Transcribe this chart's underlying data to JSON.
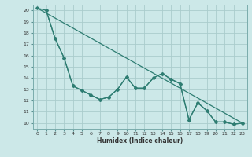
{
  "xlabel": "Humidex (Indice chaleur)",
  "bg_color": "#cce8e8",
  "grid_color": "#aacccc",
  "line_color": "#2e7d72",
  "xlim": [
    -0.5,
    23.5
  ],
  "ylim": [
    9.5,
    20.5
  ],
  "yticks": [
    10,
    11,
    12,
    13,
    14,
    15,
    16,
    17,
    18,
    19,
    20
  ],
  "xticks": [
    0,
    1,
    2,
    3,
    4,
    5,
    6,
    7,
    8,
    9,
    10,
    11,
    12,
    13,
    14,
    15,
    16,
    17,
    18,
    19,
    20,
    21,
    22,
    23
  ],
  "line1_x": [
    0,
    23
  ],
  "line1_y": [
    20.2,
    10.0
  ],
  "line2_x": [
    1,
    2,
    3,
    4,
    5,
    6,
    7,
    8,
    9,
    10,
    11,
    12,
    13,
    14,
    15,
    16,
    17,
    18,
    19,
    20,
    21,
    22,
    23
  ],
  "line2_y": [
    20.0,
    17.5,
    15.8,
    13.3,
    12.9,
    12.5,
    12.1,
    12.3,
    13.0,
    14.1,
    13.1,
    13.1,
    14.0,
    14.4,
    13.9,
    13.5,
    10.3,
    11.8,
    11.1,
    10.1,
    10.1,
    9.9,
    10.0
  ],
  "line3_x": [
    0,
    1,
    2,
    3,
    4,
    5,
    6,
    7,
    8,
    9,
    10,
    11,
    12,
    13,
    14,
    15,
    16,
    17,
    18,
    19,
    20,
    21,
    22,
    23
  ],
  "line3_y": [
    20.2,
    20.0,
    17.5,
    15.8,
    13.3,
    12.9,
    12.5,
    12.1,
    12.3,
    13.0,
    14.1,
    13.1,
    13.1,
    14.0,
    14.4,
    13.9,
    13.5,
    10.3,
    11.8,
    11.1,
    10.1,
    10.1,
    9.9,
    10.0
  ]
}
